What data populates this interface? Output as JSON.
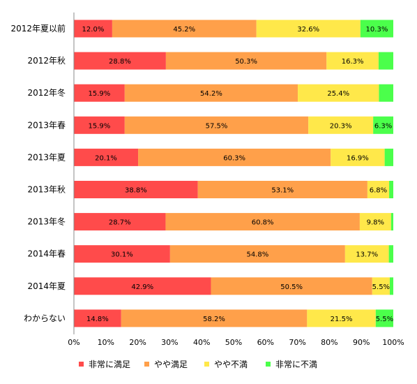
{
  "chart_data": {
    "type": "bar",
    "orientation": "horizontal",
    "stacked": "percent",
    "categories": [
      "2012年夏以前",
      "2012年秋",
      "2012年冬",
      "2013年春",
      "2013年夏",
      "2013年秋",
      "2013年冬",
      "2014年春",
      "2014年夏",
      "わからない"
    ],
    "series": [
      {
        "name": "非常に満足",
        "color": "#ff4b4b",
        "values": [
          12.0,
          28.8,
          15.9,
          15.9,
          20.1,
          38.8,
          28.7,
          30.1,
          42.9,
          14.8
        ]
      },
      {
        "name": "やや満足",
        "color": "#ffa04a",
        "values": [
          45.2,
          50.3,
          54.2,
          57.5,
          60.3,
          53.1,
          60.8,
          54.8,
          50.5,
          58.2
        ]
      },
      {
        "name": "やや不満",
        "color": "#ffe84a",
        "values": [
          32.6,
          16.3,
          25.4,
          20.3,
          16.9,
          6.8,
          9.8,
          13.7,
          5.5,
          21.5
        ]
      },
      {
        "name": "非常に不満",
        "color": "#4bff4b",
        "values": [
          10.3,
          4.6,
          4.5,
          6.3,
          2.7,
          1.3,
          0.7,
          1.4,
          1.1,
          5.5
        ]
      }
    ],
    "data_labels": [
      [
        "12.0%",
        "45.2%",
        "32.6%",
        "10.3%"
      ],
      [
        "28.8%",
        "50.3%",
        "16.3%",
        ""
      ],
      [
        "15.9%",
        "54.2%",
        "25.4%",
        ""
      ],
      [
        "15.9%",
        "57.5%",
        "20.3%",
        "6.3%"
      ],
      [
        "20.1%",
        "60.3%",
        "16.9%",
        ""
      ],
      [
        "38.8%",
        "53.1%",
        "6.8%",
        ""
      ],
      [
        "28.7%",
        "60.8%",
        "9.8%",
        ""
      ],
      [
        "30.1%",
        "54.8%",
        "13.7%",
        ""
      ],
      [
        "42.9%",
        "50.5%",
        "5.5%",
        ""
      ],
      [
        "14.8%",
        "58.2%",
        "21.5%",
        "5.5%"
      ]
    ],
    "x_ticks": [
      "0%",
      "10%",
      "20%",
      "30%",
      "40%",
      "50%",
      "60%",
      "70%",
      "80%",
      "90%",
      "100%"
    ],
    "xlim": [
      0,
      100
    ],
    "grid": false,
    "legend_position": "bottom"
  }
}
